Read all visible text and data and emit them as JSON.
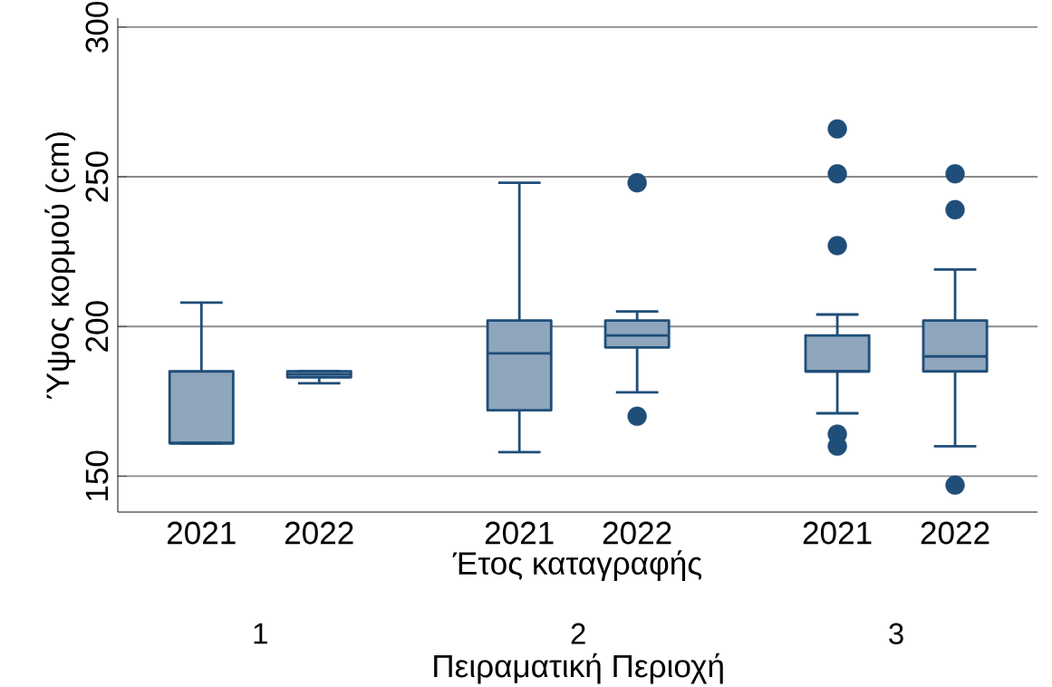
{
  "chart_data": {
    "type": "box",
    "xlabel": "Έτος καταγραφής",
    "ylabel": "Ύψος κορμού (cm)",
    "categories": [
      "2021",
      "2022",
      "2021",
      "2022",
      "2021",
      "2022"
    ],
    "series": [
      {
        "color": "#1f4e79",
        "boxes": [
          {
            "low": 161,
            "q1": 161,
            "median": 161,
            "q3": 185,
            "high": 208
          },
          {
            "low": 181,
            "q1": 183,
            "median": 184,
            "q3": 185,
            "high": 185
          },
          {
            "low": 158,
            "q1": 172,
            "median": 191,
            "q3": 202,
            "high": 248
          },
          {
            "low": 178,
            "q1": 193,
            "median": 197,
            "q3": 202,
            "high": 205,
            "outliers": [
              248,
              170
            ]
          },
          {
            "low": 171,
            "q1": 185,
            "median": 185,
            "q3": 197,
            "high": 204,
            "outliers": [
              266,
              251,
              227,
              164,
              160
            ]
          },
          {
            "low": 160,
            "q1": 185,
            "median": 190,
            "q3": 202,
            "high": 219,
            "outliers": [
              251,
              239,
              147
            ]
          }
        ]
      }
    ],
    "annotations": [
      "1",
      "2",
      "3",
      "Πειραματική Περιοχή"
    ],
    "ylim": [
      138,
      303
    ],
    "yticks": [
      150,
      200,
      250,
      300
    ],
    "grid": "y"
  }
}
